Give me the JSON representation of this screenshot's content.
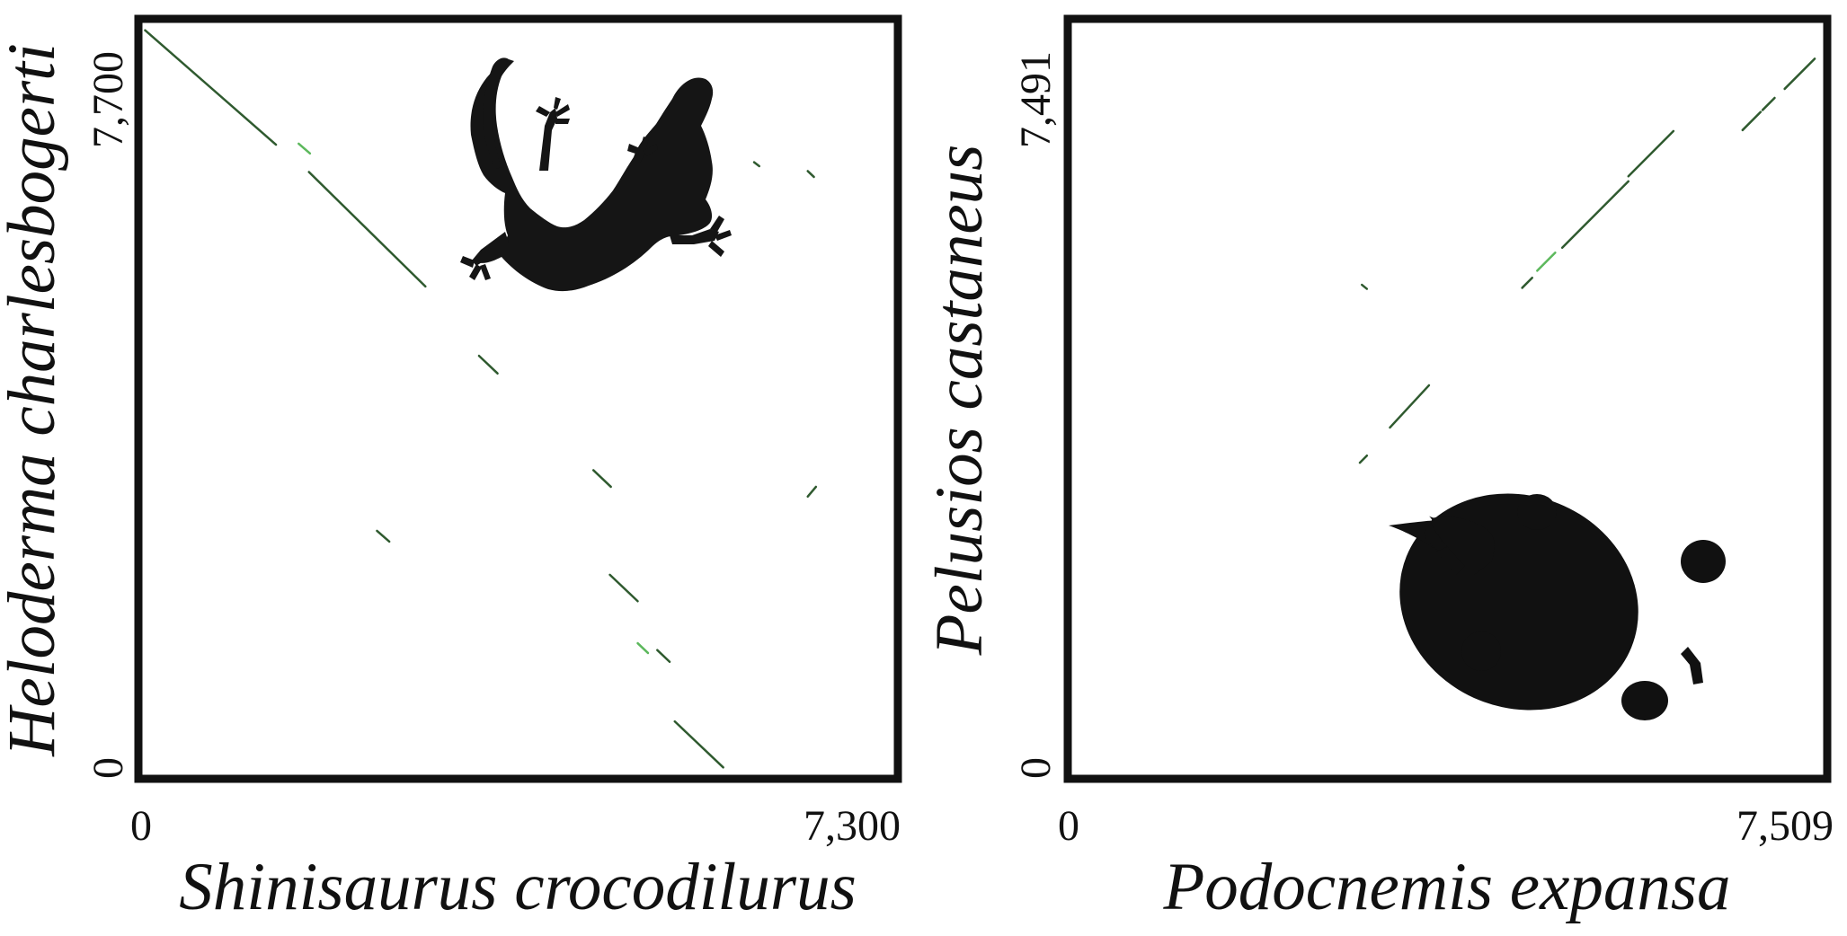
{
  "chart_data": [
    {
      "type": "scatter",
      "subtype": "dot-plot",
      "xlabel": "Shinisaurus crocodilurus",
      "ylabel": "Heloderma charlesbogerti",
      "xlim": [
        0,
        7300
      ],
      "ylim": [
        0,
        7700
      ],
      "x_tick_labels": [
        "0",
        "7,300"
      ],
      "y_tick_labels": [
        "0",
        "7,700"
      ],
      "silhouette": "lizard-silhouette",
      "segment_colors": {
        "dark": "#2f5a2f",
        "light": "#5cb85c"
      },
      "segments": [
        {
          "x": [
            30,
            1300
          ],
          "y": [
            7620,
            6450
          ],
          "color": "dark"
        },
        {
          "x": [
            1520,
            1630
          ],
          "y": [
            6460,
            6360
          ],
          "color": "light"
        },
        {
          "x": [
            1620,
            2750
          ],
          "y": [
            6170,
            5000
          ],
          "color": "dark"
        },
        {
          "x": [
            3270,
            3450
          ],
          "y": [
            4290,
            4110
          ],
          "color": "dark"
        },
        {
          "x": [
            2280,
            2400
          ],
          "y": [
            2500,
            2390
          ],
          "color": "dark"
        },
        {
          "x": [
            4380,
            4550
          ],
          "y": [
            3120,
            2950
          ],
          "color": "dark"
        },
        {
          "x": [
            4540,
            4810
          ],
          "y": [
            2050,
            1780
          ],
          "color": "dark"
        },
        {
          "x": [
            4810,
            4910
          ],
          "y": [
            1350,
            1250
          ],
          "color": "light"
        },
        {
          "x": [
            5000,
            5120
          ],
          "y": [
            1280,
            1160
          ],
          "color": "dark"
        },
        {
          "x": [
            5170,
            5640
          ],
          "y": [
            550,
            80
          ],
          "color": "dark"
        },
        {
          "x": [
            5940,
            5990
          ],
          "y": [
            6270,
            6230
          ],
          "color": "dark"
        },
        {
          "x": [
            6460,
            6520
          ],
          "y": [
            6180,
            6120
          ],
          "color": "dark"
        },
        {
          "x": [
            6460,
            6540
          ],
          "y": [
            2850,
            2950
          ],
          "color": "dark"
        }
      ]
    },
    {
      "type": "scatter",
      "subtype": "dot-plot",
      "xlabel": "Podocnemis expansa",
      "ylabel": "Pelusios castaneus",
      "xlim": [
        0,
        7509
      ],
      "ylim": [
        0,
        7491
      ],
      "x_tick_labels": [
        "0",
        "7,509"
      ],
      "y_tick_labels": [
        "0",
        "7,491"
      ],
      "silhouette": "turtle-silhouette",
      "segment_colors": {
        "dark": "#2f5a2f",
        "light": "#5cb85c"
      },
      "segments": [
        {
          "x": [
            2880,
            2950
          ],
          "y": [
            3110,
            3180
          ],
          "color": "dark"
        },
        {
          "x": [
            3180,
            3570
          ],
          "y": [
            3460,
            3880
          ],
          "color": "dark"
        },
        {
          "x": [
            2900,
            2950
          ],
          "y": [
            4880,
            4840
          ],
          "color": "dark"
        },
        {
          "x": [
            4500,
            4600
          ],
          "y": [
            4850,
            4950
          ],
          "color": "dark"
        },
        {
          "x": [
            4650,
            4830
          ],
          "y": [
            5020,
            5200
          ],
          "color": "light"
        },
        {
          "x": [
            4900,
            5560
          ],
          "y": [
            5250,
            5910
          ],
          "color": "dark"
        },
        {
          "x": [
            5560,
            6010
          ],
          "y": [
            5960,
            6410
          ],
          "color": "dark"
        },
        {
          "x": [
            6700,
            6880
          ],
          "y": [
            6420,
            6600
          ],
          "color": "dark"
        },
        {
          "x": [
            6900,
            7020
          ],
          "y": [
            6620,
            6740
          ],
          "color": "dark"
        },
        {
          "x": [
            7120,
            7420
          ],
          "y": [
            6830,
            7130
          ],
          "color": "dark"
        }
      ]
    }
  ]
}
